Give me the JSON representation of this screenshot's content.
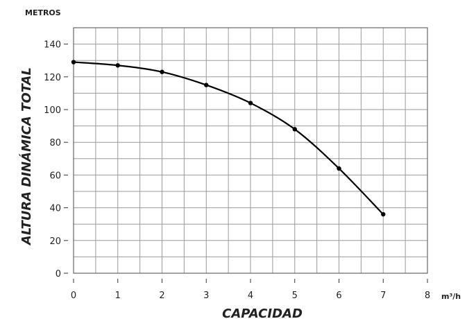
{
  "chart_data": {
    "type": "line",
    "ylabel": "ALTURA DINÁMICA TOTAL",
    "xlabel": "CAPACIDAD",
    "y_units": "METROS",
    "x_units": "m³/h",
    "xlim": [
      0,
      8
    ],
    "ylim": [
      0,
      150
    ],
    "x_ticks": [
      0,
      1,
      2,
      3,
      4,
      5,
      6,
      7,
      8
    ],
    "y_ticks": [
      0,
      20,
      40,
      60,
      80,
      100,
      120,
      140
    ],
    "grid": true,
    "series": [
      {
        "x": [
          0,
          1,
          2,
          3,
          4,
          5,
          6,
          7
        ],
        "y": [
          129,
          127,
          123,
          115,
          104,
          88,
          64,
          36
        ]
      }
    ]
  }
}
